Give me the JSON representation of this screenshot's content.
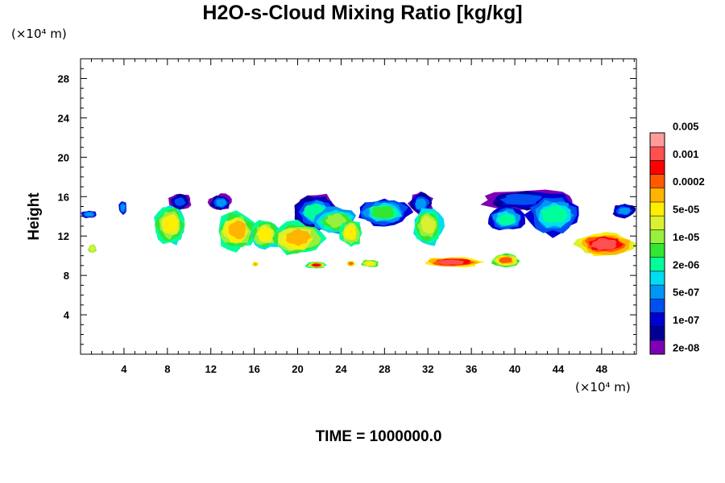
{
  "chart_data": {
    "type": "heatmap",
    "title": "H2O-s-Cloud Mixing Ratio [kg/kg]",
    "ylabel": "Height",
    "xlabel": "",
    "x_unit": "(×10⁴ m)",
    "y_unit": "(×10⁴ m)",
    "footer": "TIME = 1000000.0",
    "xlim": [
      0,
      51.2
    ],
    "ylim": [
      0,
      30
    ],
    "x_ticks": [
      4,
      8,
      12,
      16,
      20,
      24,
      28,
      32,
      36,
      40,
      44,
      48
    ],
    "y_ticks": [
      4,
      8,
      12,
      16,
      20,
      24,
      28
    ],
    "colorbar": {
      "colors": [
        "#7d00b4",
        "#000096",
        "#0000d2",
        "#0050f0",
        "#0096f5",
        "#00dcf0",
        "#00ff9b",
        "#32e632",
        "#96f03c",
        "#dcf032",
        "#ffee00",
        "#ffb400",
        "#ff5a00",
        "#ff0000",
        "#ff5050",
        "#ff9b9b"
      ],
      "labels": [
        "2e-08",
        "1e-07",
        "5e-07",
        "2e-06",
        "1e-05",
        "5e-05",
        "0.0002",
        "0.001",
        "0.005"
      ]
    },
    "cloud_regions": [
      {
        "x": [
          0.0,
          1.6
        ],
        "y": [
          13.8,
          14.6
        ],
        "level_range": [
          2,
          4
        ]
      },
      {
        "x": [
          3.5,
          4.3
        ],
        "y": [
          14.2,
          15.6
        ],
        "level_range": [
          2,
          4
        ]
      },
      {
        "x": [
          0.7,
          1.5
        ],
        "y": [
          10.2,
          11.2
        ],
        "level_range": [
          8,
          9
        ]
      },
      {
        "x": [
          6.6,
          9.8
        ],
        "y": [
          11.0,
          15.2
        ],
        "level_range": [
          5,
          10
        ]
      },
      {
        "x": [
          8.1,
          10.2
        ],
        "y": [
          14.6,
          16.4
        ],
        "level_range": [
          0,
          3
        ]
      },
      {
        "x": [
          11.8,
          14.0
        ],
        "y": [
          14.5,
          16.3
        ],
        "level_range": [
          0,
          4
        ]
      },
      {
        "x": [
          12.5,
          16.2
        ],
        "y": [
          10.5,
          14.5
        ],
        "level_range": [
          6,
          11
        ]
      },
      {
        "x": [
          15.5,
          18.5
        ],
        "y": [
          10.5,
          13.8
        ],
        "level_range": [
          5,
          10
        ]
      },
      {
        "x": [
          19.5,
          24.0
        ],
        "y": [
          12.5,
          16.3
        ],
        "level_range": [
          0,
          6
        ]
      },
      {
        "x": [
          17.5,
          22.5
        ],
        "y": [
          10.0,
          13.5
        ],
        "level_range": [
          6,
          11
        ]
      },
      {
        "x": [
          21.5,
          25.5
        ],
        "y": [
          12.0,
          15.0
        ],
        "level_range": [
          4,
          8
        ]
      },
      {
        "x": [
          23.8,
          26.0
        ],
        "y": [
          10.8,
          13.8
        ],
        "level_range": [
          6,
          10
        ]
      },
      {
        "x": [
          25.5,
          30.5
        ],
        "y": [
          13.0,
          15.8
        ],
        "level_range": [
          2,
          7
        ]
      },
      {
        "x": [
          30.2,
          32.5
        ],
        "y": [
          14.0,
          16.6
        ],
        "level_range": [
          0,
          4
        ]
      },
      {
        "x": [
          30.5,
          33.5
        ],
        "y": [
          11.0,
          15.0
        ],
        "level_range": [
          5,
          9
        ]
      },
      {
        "x": [
          36.8,
          45.5
        ],
        "y": [
          14.5,
          16.8
        ],
        "level_range": [
          0,
          3
        ]
      },
      {
        "x": [
          37.5,
          41.0
        ],
        "y": [
          12.5,
          15.0
        ],
        "level_range": [
          2,
          6
        ]
      },
      {
        "x": [
          41.0,
          46.0
        ],
        "y": [
          12.0,
          16.3
        ],
        "level_range": [
          2,
          6
        ]
      },
      {
        "x": [
          49.0,
          51.2
        ],
        "y": [
          13.8,
          15.3
        ],
        "level_range": [
          1,
          4
        ]
      },
      {
        "x": [
          45.5,
          51.2
        ],
        "y": [
          9.8,
          12.5
        ],
        "level_range": [
          9,
          14
        ]
      },
      {
        "x": [
          31.5,
          37.0
        ],
        "y": [
          8.8,
          9.9
        ],
        "level_range": [
          10,
          14
        ]
      },
      {
        "x": [
          37.8,
          40.5
        ],
        "y": [
          8.8,
          10.2
        ],
        "level_range": [
          7,
          12
        ]
      },
      {
        "x": [
          25.8,
          27.5
        ],
        "y": [
          8.8,
          9.6
        ],
        "level_range": [
          7,
          10
        ]
      },
      {
        "x": [
          24.5,
          25.3
        ],
        "y": [
          8.9,
          9.5
        ],
        "level_range": [
          9,
          12
        ]
      },
      {
        "x": [
          20.7,
          22.7
        ],
        "y": [
          8.7,
          9.4
        ],
        "level_range": [
          6,
          13
        ]
      },
      {
        "x": [
          15.8,
          16.4
        ],
        "y": [
          8.9,
          9.4
        ],
        "level_range": [
          9,
          11
        ]
      }
    ]
  }
}
